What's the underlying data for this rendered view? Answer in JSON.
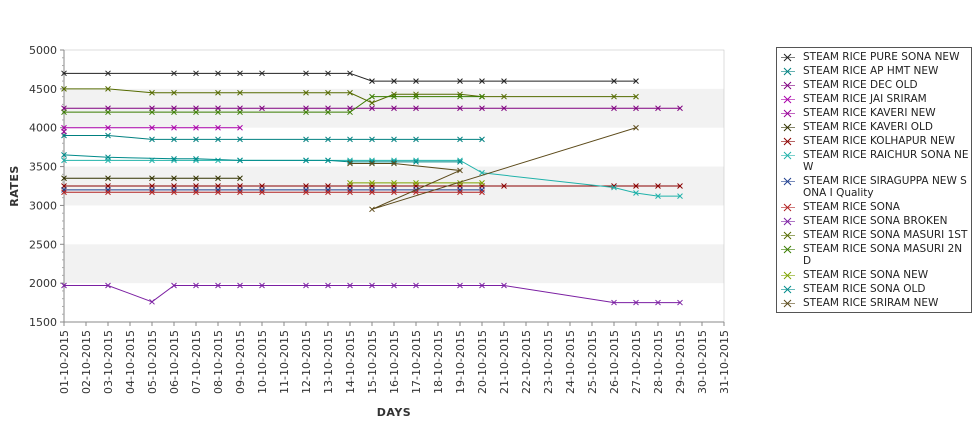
{
  "chart_data": {
    "type": "line",
    "title": "",
    "xlabel": "DAYS",
    "ylabel": "RATES",
    "ylim": [
      1500,
      5000
    ],
    "y_ticks": [
      1500,
      2000,
      2500,
      3000,
      3500,
      4000,
      4500,
      5000
    ],
    "grid": "alternating horizontal bands",
    "legend_position": "right",
    "categories": [
      "01-10-2015",
      "02-10-2015",
      "03-10-2015",
      "04-10-2015",
      "05-10-2015",
      "06-10-2015",
      "07-10-2015",
      "08-10-2015",
      "09-10-2015",
      "10-10-2015",
      "11-10-2015",
      "12-10-2015",
      "13-10-2015",
      "14-10-2015",
      "15-10-2015",
      "16-10-2015",
      "17-10-2015",
      "18-10-2015",
      "19-10-2015",
      "20-10-2015",
      "21-10-2015",
      "22-10-2015",
      "23-10-2015",
      "24-10-2015",
      "25-10-2015",
      "26-10-2015",
      "27-10-2015",
      "28-10-2015",
      "29-10-2015",
      "30-10-2015",
      "31-10-2015"
    ],
    "series": [
      {
        "name": " STEAM RICE PURE SONA NEW",
        "color": "#222222",
        "points": [
          [
            "01-10-2015",
            4700
          ],
          [
            "03-10-2015",
            4700
          ],
          [
            "06-10-2015",
            4700
          ],
          [
            "07-10-2015",
            4700
          ],
          [
            "08-10-2015",
            4700
          ],
          [
            "09-10-2015",
            4700
          ],
          [
            "10-10-2015",
            4700
          ],
          [
            "12-10-2015",
            4700
          ],
          [
            "13-10-2015",
            4700
          ],
          [
            "14-10-2015",
            4700
          ],
          [
            "15-10-2015",
            4600
          ],
          [
            "16-10-2015",
            4600
          ],
          [
            "17-10-2015",
            4600
          ],
          [
            "19-10-2015",
            4600
          ],
          [
            "20-10-2015",
            4600
          ],
          [
            "21-10-2015",
            4600
          ],
          [
            "26-10-2015",
            4600
          ],
          [
            "27-10-2015",
            4600
          ]
        ]
      },
      {
        "name": "STEAM RICE AP HMT NEW",
        "color": "#008080",
        "points": [
          [
            "01-10-2015",
            3900
          ],
          [
            "03-10-2015",
            3900
          ],
          [
            "05-10-2015",
            3850
          ],
          [
            "06-10-2015",
            3850
          ],
          [
            "07-10-2015",
            3850
          ],
          [
            "08-10-2015",
            3850
          ],
          [
            "09-10-2015",
            3850
          ],
          [
            "12-10-2015",
            3850
          ],
          [
            "13-10-2015",
            3850
          ],
          [
            "14-10-2015",
            3850
          ],
          [
            "15-10-2015",
            3850
          ],
          [
            "16-10-2015",
            3850
          ],
          [
            "17-10-2015",
            3850
          ],
          [
            "19-10-2015",
            3850
          ],
          [
            "20-10-2015",
            3850
          ]
        ]
      },
      {
        "name": "STEAM RICE DEC OLD",
        "color": "#800080",
        "points": [
          [
            "01-10-2015",
            4250
          ],
          [
            "03-10-2015",
            4250
          ],
          [
            "05-10-2015",
            4250
          ],
          [
            "06-10-2015",
            4250
          ],
          [
            "07-10-2015",
            4250
          ],
          [
            "08-10-2015",
            4250
          ],
          [
            "09-10-2015",
            4250
          ],
          [
            "10-10-2015",
            4250
          ],
          [
            "12-10-2015",
            4250
          ],
          [
            "13-10-2015",
            4250
          ],
          [
            "14-10-2015",
            4250
          ],
          [
            "15-10-2015",
            4250
          ],
          [
            "16-10-2015",
            4250
          ],
          [
            "17-10-2015",
            4250
          ],
          [
            "19-10-2015",
            4250
          ],
          [
            "20-10-2015",
            4250
          ],
          [
            "21-10-2015",
            4250
          ],
          [
            "26-10-2015",
            4250
          ],
          [
            "27-10-2015",
            4250
          ],
          [
            "28-10-2015",
            4250
          ],
          [
            "29-10-2015",
            4250
          ]
        ]
      },
      {
        "name": "STEAM RICE JAI SRIRAM",
        "color": "#aa00aa",
        "points": [
          [
            "01-10-2015",
            4000
          ],
          [
            "03-10-2015",
            4000
          ],
          [
            "05-10-2015",
            4000
          ],
          [
            "06-10-2015",
            4000
          ],
          [
            "07-10-2015",
            4000
          ],
          [
            "08-10-2015",
            4000
          ],
          [
            "09-10-2015",
            4000
          ]
        ]
      },
      {
        "name": "STEAM RICE KAVERI NEW",
        "color": "#990099",
        "points": [
          [
            "01-10-2015",
            3950
          ]
        ]
      },
      {
        "name": "STEAM RICE KAVERI OLD",
        "color": "#333300",
        "points": [
          [
            "01-10-2015",
            3350
          ],
          [
            "03-10-2015",
            3350
          ],
          [
            "05-10-2015",
            3350
          ],
          [
            "06-10-2015",
            3350
          ],
          [
            "07-10-2015",
            3350
          ],
          [
            "08-10-2015",
            3350
          ],
          [
            "09-10-2015",
            3350
          ]
        ]
      },
      {
        "name": "STEAM RICE KOLHAPUR NEW",
        "color": "#8b0000",
        "points": [
          [
            "01-10-2015",
            3250
          ],
          [
            "03-10-2015",
            3250
          ],
          [
            "05-10-2015",
            3250
          ],
          [
            "06-10-2015",
            3250
          ],
          [
            "07-10-2015",
            3250
          ],
          [
            "08-10-2015",
            3250
          ],
          [
            "09-10-2015",
            3250
          ],
          [
            "10-10-2015",
            3250
          ],
          [
            "12-10-2015",
            3250
          ],
          [
            "13-10-2015",
            3250
          ],
          [
            "14-10-2015",
            3250
          ],
          [
            "15-10-2015",
            3250
          ],
          [
            "16-10-2015",
            3250
          ],
          [
            "17-10-2015",
            3250
          ],
          [
            "19-10-2015",
            3250
          ],
          [
            "20-10-2015",
            3250
          ],
          [
            "21-10-2015",
            3250
          ],
          [
            "26-10-2015",
            3250
          ],
          [
            "27-10-2015",
            3250
          ],
          [
            "28-10-2015",
            3250
          ],
          [
            "29-10-2015",
            3250
          ]
        ]
      },
      {
        "name": "STEAM RICE RAICHUR SONA NEW",
        "color": "#20b2aa",
        "points": [
          [
            "01-10-2015",
            3580
          ],
          [
            "03-10-2015",
            3580
          ],
          [
            "05-10-2015",
            3580
          ],
          [
            "06-10-2015",
            3580
          ],
          [
            "07-10-2015",
            3580
          ],
          [
            "08-10-2015",
            3580
          ],
          [
            "09-10-2015",
            3580
          ],
          [
            "12-10-2015",
            3580
          ],
          [
            "13-10-2015",
            3580
          ],
          [
            "14-10-2015",
            3580
          ],
          [
            "15-10-2015",
            3580
          ],
          [
            "16-10-2015",
            3580
          ],
          [
            "17-10-2015",
            3580
          ],
          [
            "19-10-2015",
            3580
          ],
          [
            "20-10-2015",
            3420
          ],
          [
            "26-10-2015",
            3230
          ],
          [
            "27-10-2015",
            3160
          ],
          [
            "28-10-2015",
            3120
          ],
          [
            "29-10-2015",
            3120
          ]
        ]
      },
      {
        "name": "STEAM RICE SIRAGUPPA NEW SONA I Quality",
        "color": "#1f3f8f",
        "points": [
          [
            "01-10-2015",
            3200
          ],
          [
            "03-10-2015",
            3200
          ],
          [
            "05-10-2015",
            3200
          ],
          [
            "06-10-2015",
            3200
          ],
          [
            "07-10-2015",
            3200
          ],
          [
            "08-10-2015",
            3200
          ],
          [
            "09-10-2015",
            3200
          ],
          [
            "10-10-2015",
            3200
          ],
          [
            "12-10-2015",
            3200
          ],
          [
            "13-10-2015",
            3200
          ],
          [
            "14-10-2015",
            3200
          ],
          [
            "15-10-2015",
            3200
          ],
          [
            "16-10-2015",
            3200
          ],
          [
            "17-10-2015",
            3200
          ],
          [
            "19-10-2015",
            3200
          ],
          [
            "20-10-2015",
            3200
          ]
        ]
      },
      {
        "name": "STEAM RICE SONA",
        "color": "#b22222",
        "points": [
          [
            "01-10-2015",
            3170
          ],
          [
            "03-10-2015",
            3170
          ],
          [
            "05-10-2015",
            3170
          ],
          [
            "06-10-2015",
            3170
          ],
          [
            "07-10-2015",
            3170
          ],
          [
            "08-10-2015",
            3170
          ],
          [
            "09-10-2015",
            3170
          ],
          [
            "10-10-2015",
            3170
          ],
          [
            "12-10-2015",
            3170
          ],
          [
            "13-10-2015",
            3170
          ],
          [
            "14-10-2015",
            3170
          ],
          [
            "15-10-2015",
            3170
          ],
          [
            "16-10-2015",
            3170
          ],
          [
            "17-10-2015",
            3170
          ],
          [
            "19-10-2015",
            3170
          ],
          [
            "20-10-2015",
            3170
          ]
        ]
      },
      {
        "name": "STEAM RICE SONA BROKEN",
        "color": "#7b1fa2",
        "points": [
          [
            "01-10-2015",
            1970
          ],
          [
            "03-10-2015",
            1970
          ],
          [
            "05-10-2015",
            1760
          ],
          [
            "06-10-2015",
            1970
          ],
          [
            "07-10-2015",
            1970
          ],
          [
            "08-10-2015",
            1970
          ],
          [
            "09-10-2015",
            1970
          ],
          [
            "10-10-2015",
            1970
          ],
          [
            "12-10-2015",
            1970
          ],
          [
            "13-10-2015",
            1970
          ],
          [
            "14-10-2015",
            1970
          ],
          [
            "15-10-2015",
            1970
          ],
          [
            "16-10-2015",
            1970
          ],
          [
            "17-10-2015",
            1970
          ],
          [
            "19-10-2015",
            1970
          ],
          [
            "20-10-2015",
            1970
          ],
          [
            "21-10-2015",
            1970
          ],
          [
            "26-10-2015",
            1750
          ],
          [
            "27-10-2015",
            1750
          ],
          [
            "28-10-2015",
            1750
          ],
          [
            "29-10-2015",
            1750
          ]
        ]
      },
      {
        "name": "STEAM RICE SONA MASURI 1ST",
        "color": "#556b00",
        "points": [
          [
            "01-10-2015",
            4500
          ],
          [
            "03-10-2015",
            4500
          ],
          [
            "05-10-2015",
            4450
          ],
          [
            "06-10-2015",
            4450
          ],
          [
            "08-10-2015",
            4450
          ],
          [
            "09-10-2015",
            4450
          ],
          [
            "12-10-2015",
            4450
          ],
          [
            "13-10-2015",
            4450
          ],
          [
            "14-10-2015",
            4450
          ],
          [
            "15-10-2015",
            4320
          ],
          [
            "16-10-2015",
            4430
          ],
          [
            "17-10-2015",
            4430
          ],
          [
            "19-10-2015",
            4430
          ],
          [
            "20-10-2015",
            4400
          ],
          [
            "21-10-2015",
            4400
          ],
          [
            "26-10-2015",
            4400
          ],
          [
            "27-10-2015",
            4400
          ]
        ]
      },
      {
        "name": "STEAM RICE SONA MASURI 2ND",
        "color": "#3a7d00",
        "points": [
          [
            "01-10-2015",
            4200
          ],
          [
            "03-10-2015",
            4200
          ],
          [
            "05-10-2015",
            4200
          ],
          [
            "06-10-2015",
            4200
          ],
          [
            "07-10-2015",
            4200
          ],
          [
            "08-10-2015",
            4200
          ],
          [
            "09-10-2015",
            4200
          ],
          [
            "12-10-2015",
            4200
          ],
          [
            "13-10-2015",
            4200
          ],
          [
            "14-10-2015",
            4200
          ],
          [
            "15-10-2015",
            4400
          ],
          [
            "16-10-2015",
            4400
          ],
          [
            "17-10-2015",
            4400
          ],
          [
            "19-10-2015",
            4400
          ],
          [
            "20-10-2015",
            4400
          ]
        ]
      },
      {
        "name": "STEAM RICE SONA NEW",
        "color": "#7ea300",
        "points": [
          [
            "14-10-2015",
            3290
          ],
          [
            "15-10-2015",
            3290
          ],
          [
            "16-10-2015",
            3290
          ],
          [
            "17-10-2015",
            3290
          ],
          [
            "19-10-2015",
            3290
          ],
          [
            "20-10-2015",
            3290
          ]
        ]
      },
      {
        "name": "STEAM RICE SONA OLD",
        "color": "#008b8b",
        "points": [
          [
            "01-10-2015",
            3650
          ],
          [
            "03-10-2015",
            3620
          ],
          [
            "06-10-2015",
            3600
          ],
          [
            "07-10-2015",
            3600
          ],
          [
            "09-10-2015",
            3580
          ],
          [
            "12-10-2015",
            3580
          ],
          [
            "13-10-2015",
            3580
          ],
          [
            "14-10-2015",
            3560
          ],
          [
            "15-10-2015",
            3560
          ],
          [
            "16-10-2015",
            3560
          ],
          [
            "17-10-2015",
            3560
          ],
          [
            "19-10-2015",
            3560
          ]
        ]
      },
      {
        "name": "STEAM RICE SRIRAM NEW",
        "color": "#5c4a1a",
        "points": [
          [
            "14-10-2015",
            3540
          ],
          [
            "15-10-2015",
            3540
          ],
          [
            "16-10-2015",
            3540
          ],
          [
            "19-10-2015",
            3450
          ],
          [
            "15-10-2015",
            2950
          ],
          [
            "27-10-2015",
            4000
          ]
        ]
      }
    ]
  }
}
